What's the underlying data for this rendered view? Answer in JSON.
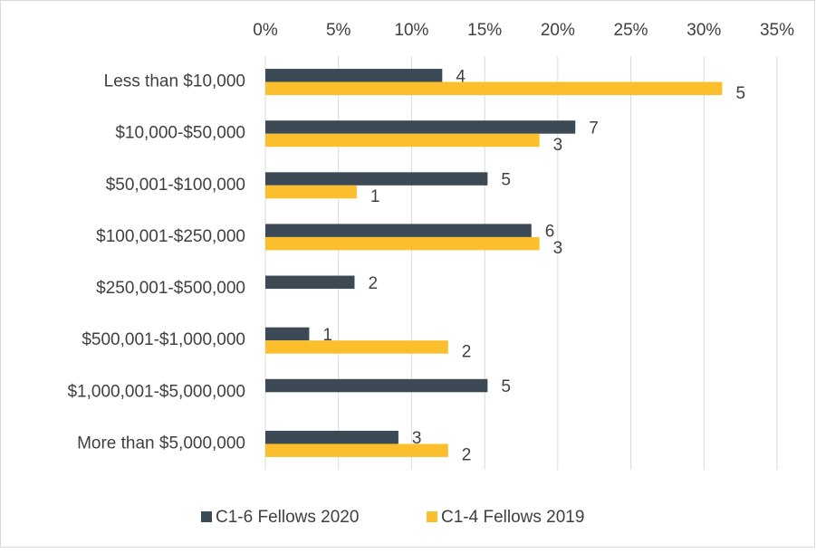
{
  "chart_data": {
    "type": "hbar",
    "categories": [
      "Less than $10,000",
      "$10,000-$50,000",
      "$50,001-$100,000",
      "$100,001-$250,000",
      "$250,001-$500,000",
      "$500,001-$1,000,000",
      "$1,000,001-$5,000,000",
      "More than $5,000,000"
    ],
    "series": [
      {
        "name": "C1-6 Fellows 2020",
        "color": "#3b4a54",
        "values": [
          12.1,
          21.2,
          15.2,
          18.2,
          6.1,
          3.0,
          15.2,
          9.1
        ],
        "counts": [
          4,
          7,
          5,
          6,
          2,
          1,
          5,
          3
        ]
      },
      {
        "name": "C1-4 Fellows 2019",
        "color": "#fbbf2d",
        "values": [
          31.25,
          18.75,
          6.25,
          18.75,
          0,
          12.5,
          0,
          12.5
        ],
        "counts": [
          5,
          3,
          1,
          3,
          null,
          2,
          null,
          2
        ]
      }
    ],
    "xlim": [
      0,
      35
    ],
    "xticks": [
      {
        "value": 0,
        "label": "0%"
      },
      {
        "value": 5,
        "label": "5%"
      },
      {
        "value": 10,
        "label": "10%"
      },
      {
        "value": 15,
        "label": "15%"
      },
      {
        "value": 20,
        "label": "20%"
      },
      {
        "value": 25,
        "label": "25%"
      },
      {
        "value": 30,
        "label": "30%"
      },
      {
        "value": 35,
        "label": "35%"
      }
    ],
    "grid": true,
    "legend": "bottom"
  }
}
